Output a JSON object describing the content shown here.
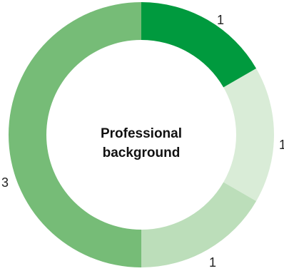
{
  "chart_data": {
    "type": "pie",
    "donut": true,
    "center_title": [
      "Professional",
      "background"
    ],
    "slices": [
      {
        "label": "1",
        "value": 1,
        "color": "#009a3e"
      },
      {
        "label": "1",
        "value": 1,
        "color": "#d9ecd7"
      },
      {
        "label": "1",
        "value": 1,
        "color": "#bcdeba"
      },
      {
        "label": "3",
        "value": 3,
        "color": "#76bc77"
      }
    ],
    "legend": "none"
  }
}
